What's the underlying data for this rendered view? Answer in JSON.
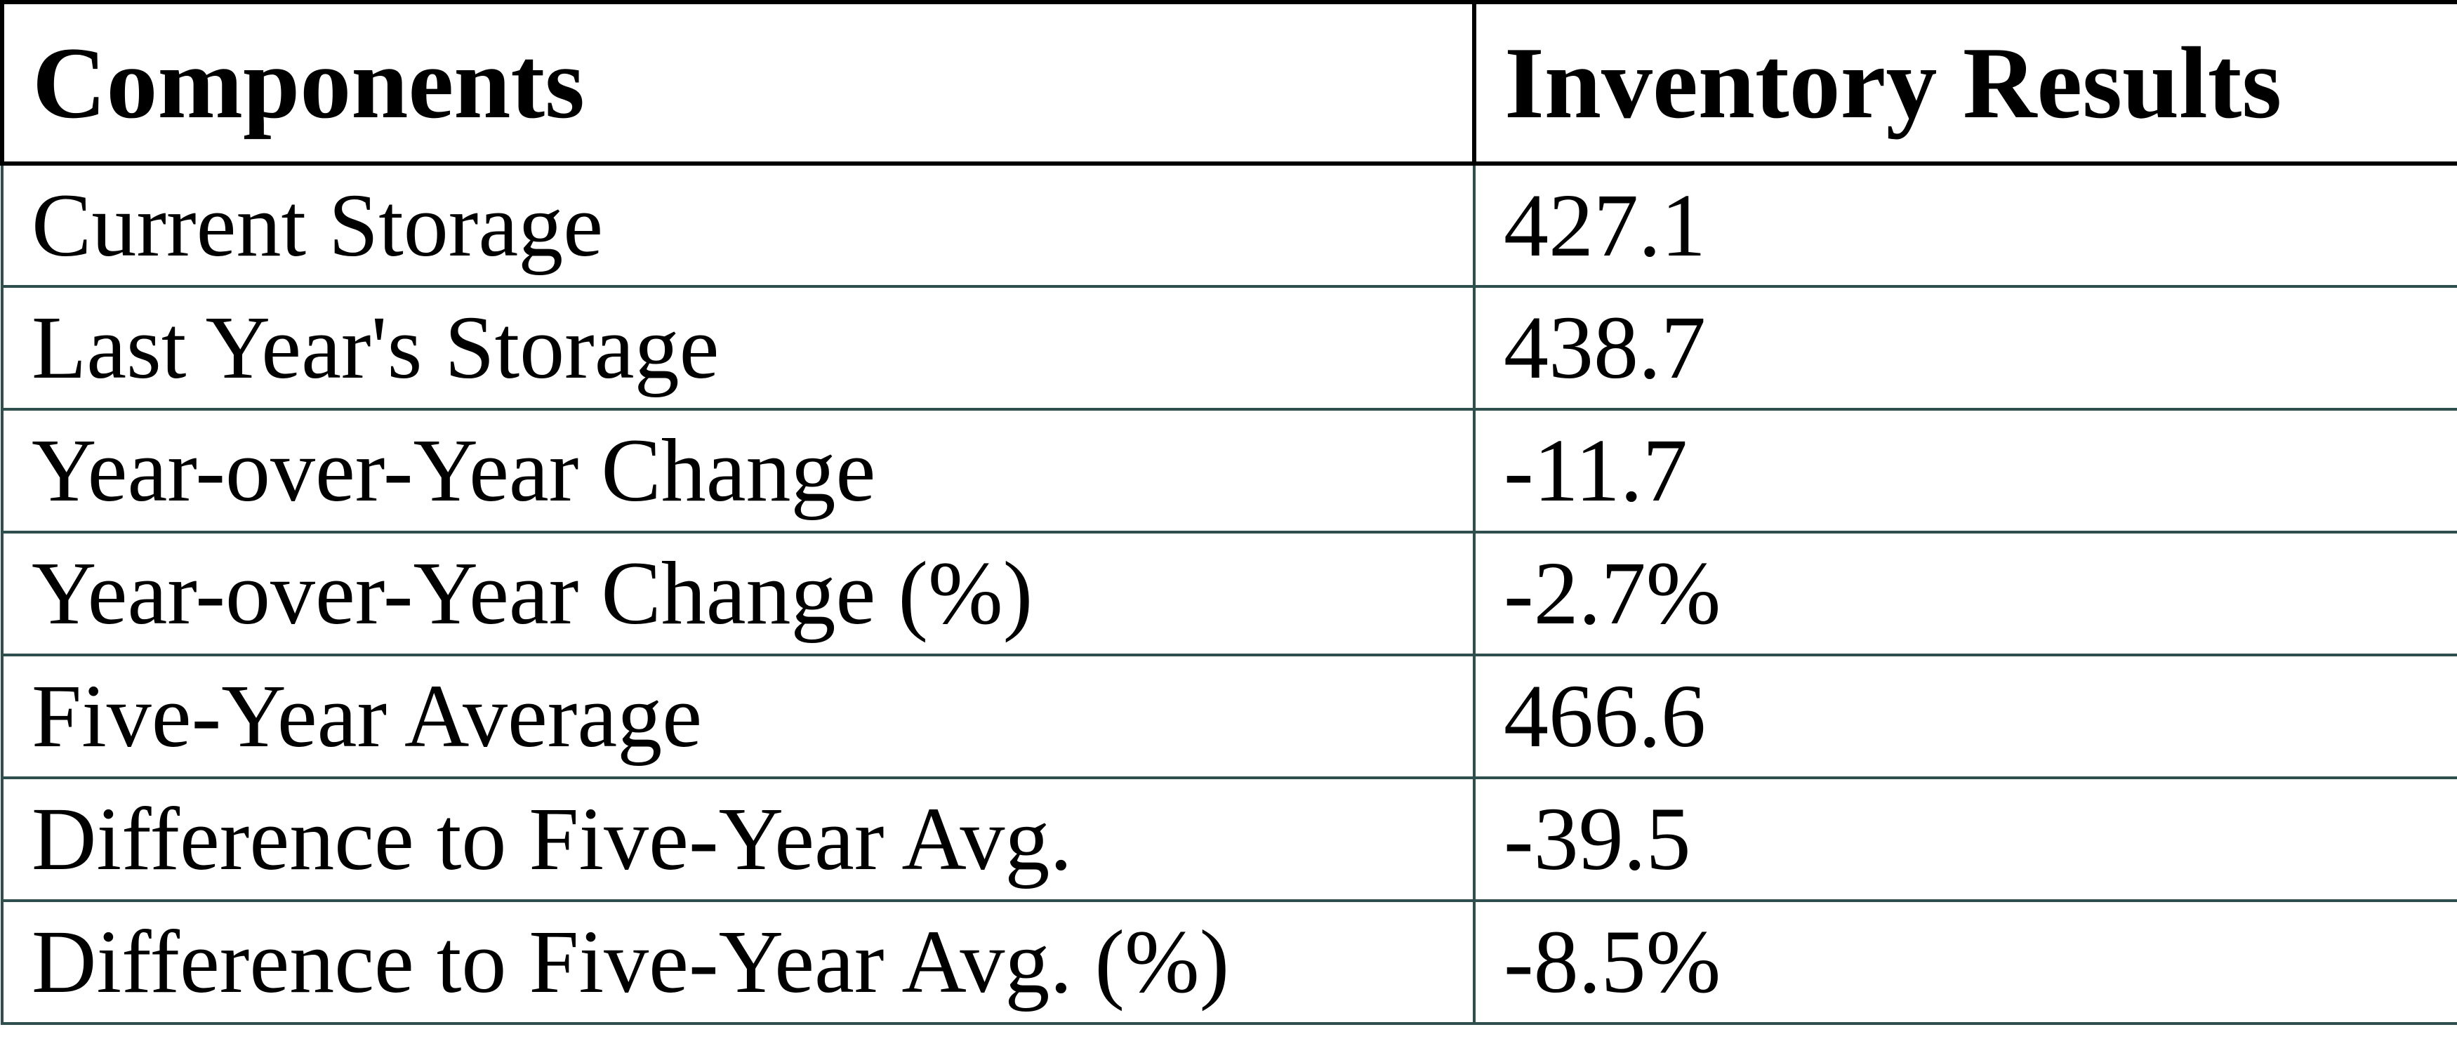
{
  "colors": {
    "header_border": "#000000",
    "body_border": "#2F4F4F",
    "text_color": "#000000",
    "page_background": "#FFFFFF"
  },
  "table": {
    "columns": [
      {
        "label": "Components"
      },
      {
        "label": "Inventory Results"
      }
    ],
    "rows": [
      {
        "component": "Current Storage",
        "result": "427.1"
      },
      {
        "component": "Last Year's Storage",
        "result": "438.7"
      },
      {
        "component": "Year-over-Year Change",
        "result": "-11.7"
      },
      {
        "component": "Year-over-Year Change (%)",
        "result": "-2.7%"
      },
      {
        "component": "Five-Year Average",
        "result": "466.6"
      },
      {
        "component": "Difference to Five-Year Avg.",
        "result": "-39.5"
      },
      {
        "component": "Difference to Five-Year Avg. (%)",
        "result": "-8.5%"
      }
    ]
  },
  "chart_data": {
    "type": "table",
    "columns": [
      "Components",
      "Inventory Results"
    ],
    "rows": [
      [
        "Current Storage",
        427.1
      ],
      [
        "Last Year's Storage",
        438.7
      ],
      [
        "Year-over-Year Change",
        -11.7
      ],
      [
        "Year-over-Year Change (%)",
        "-2.7%"
      ],
      [
        "Five-Year Average",
        466.6
      ],
      [
        "Difference to Five-Year Avg.",
        -39.5
      ],
      [
        "Difference to Five-Year Avg. (%)",
        "-8.5%"
      ]
    ]
  }
}
